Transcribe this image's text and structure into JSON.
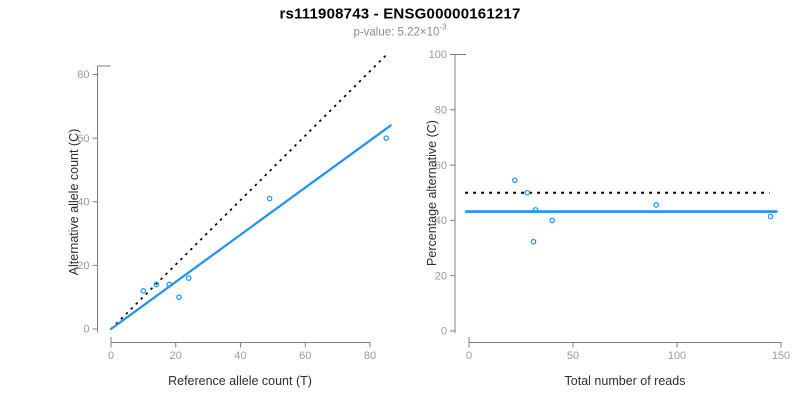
{
  "header": {
    "title": "rs111908743 - ENSG00000161217",
    "subtitle_prefix": "p-value: 5.22×10",
    "subtitle_exponent": "-3"
  },
  "colors": {
    "accent_blue": "#1E90FF",
    "dashed_black": "#000000",
    "axis_line": "#808080",
    "tick_label": "#999999",
    "axis_title_text": "#2e2e2e",
    "title_text": "#000000",
    "subtitle_text": "#8c8c8c"
  },
  "chart_data": [
    {
      "id": "allele-counts",
      "type": "scatter",
      "xlabel": "Reference allele count (T)",
      "ylabel": "Alternative allele count (C)",
      "xlim": [
        0,
        86
      ],
      "ylim": [
        0,
        86
      ],
      "x_ticks": [
        0,
        20,
        40,
        60,
        80
      ],
      "y_ticks": [
        0,
        20,
        40,
        60,
        80
      ],
      "grid": false,
      "points": [
        [
          10,
          12
        ],
        [
          14,
          14
        ],
        [
          18,
          14
        ],
        [
          21,
          10
        ],
        [
          24,
          16
        ],
        [
          49,
          41
        ],
        [
          85,
          60
        ]
      ],
      "lines": [
        {
          "name": "identity-line",
          "style": "dotted",
          "color": "#000000",
          "x1": 0,
          "y1": 0,
          "x2": 84.8,
          "y2": 85.9
        },
        {
          "name": "fit-line",
          "style": "solid",
          "color": "#1E90FF",
          "x1": 0,
          "y1": 0,
          "x2": 86.4,
          "y2": 64.0
        }
      ]
    },
    {
      "id": "percentage-alternative",
      "type": "scatter",
      "xlabel": "Total number of reads",
      "ylabel": "Percentage alternative (C)",
      "xlim": [
        0,
        150
      ],
      "ylim": [
        0,
        100
      ],
      "x_ticks": [
        0,
        50,
        100,
        150
      ],
      "y_ticks": [
        0,
        20,
        40,
        60,
        80,
        100
      ],
      "grid": false,
      "points": [
        [
          22,
          54.5
        ],
        [
          28,
          50
        ],
        [
          32,
          43.8
        ],
        [
          31,
          32.3
        ],
        [
          40,
          40
        ],
        [
          90,
          45.6
        ],
        [
          145,
          41.4
        ]
      ],
      "lines": [
        {
          "name": "expected-percentage-line",
          "style": "dotted",
          "color": "#000000",
          "x1": -1.9,
          "y1": 50,
          "x2": 144.5,
          "y2": 50
        },
        {
          "name": "fit-line",
          "style": "solid",
          "color": "#1E90FF",
          "x1": -1.4,
          "y1": 43.2,
          "x2": 147.8,
          "y2": 43.2
        }
      ]
    }
  ]
}
